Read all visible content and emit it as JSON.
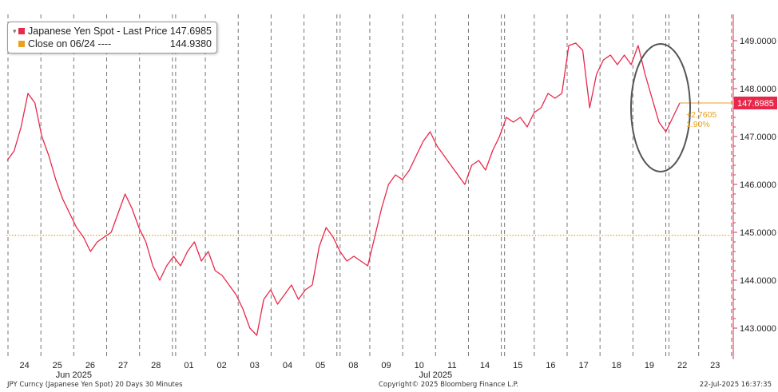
{
  "chart_data": {
    "type": "line",
    "series": [
      {
        "name": "Japanese Yen Spot - Last Price",
        "last_value": "147.6985",
        "color": "#e8284a",
        "values": [
          146.5,
          146.7,
          147.2,
          147.9,
          147.7,
          147.0,
          146.6,
          146.1,
          145.7,
          145.4,
          145.1,
          144.9,
          144.6,
          144.8,
          144.9,
          145.0,
          145.4,
          145.8,
          145.5,
          145.1,
          144.8,
          144.3,
          144.0,
          144.3,
          144.5,
          144.3,
          144.6,
          144.8,
          144.4,
          144.6,
          144.2,
          144.1,
          143.9,
          143.7,
          143.4,
          143.0,
          142.85,
          143.6,
          143.8,
          143.5,
          143.7,
          143.9,
          143.6,
          143.8,
          143.9,
          144.7,
          145.1,
          144.9,
          144.6,
          144.4,
          144.5,
          144.4,
          144.3,
          144.9,
          145.5,
          146.0,
          146.2,
          146.1,
          146.3,
          146.6,
          146.9,
          147.1,
          146.8,
          146.6,
          146.4,
          146.2,
          146.0,
          146.4,
          146.5,
          146.3,
          146.7,
          147.0,
          147.4,
          147.3,
          147.4,
          147.2,
          147.5,
          147.6,
          147.9,
          147.8,
          147.9,
          148.9,
          148.95,
          148.8,
          147.6,
          148.3,
          148.6,
          148.7,
          148.5,
          148.7,
          148.5,
          148.9,
          148.3,
          147.8,
          147.3,
          147.1,
          147.4,
          147.7
        ],
        "marker_value": "147.6985"
      },
      {
        "name": "Close on 06/24 ----",
        "last_value": "144.9380",
        "color": "#e8a020",
        "value": 144.938,
        "style": "dotted"
      }
    ],
    "xlabel": "",
    "ylabel": "",
    "ylim": [
      142.35,
      149.55
    ],
    "y_ticks": [
      "143.0000",
      "144.0000",
      "145.0000",
      "146.0000",
      "147.0000",
      "148.0000",
      "149.0000"
    ],
    "y_tick_values": [
      143,
      144,
      145,
      146,
      147,
      148,
      149
    ],
    "x_tick_labels": [
      "24",
      "25",
      "26",
      "27",
      "28",
      "01",
      "02",
      "03",
      "04",
      "05",
      "08",
      "09",
      "10",
      "11",
      "14",
      "15",
      "16",
      "17",
      "18",
      "19",
      "22",
      "23"
    ],
    "x_month_labels": [
      "Jun 2025",
      "Jul 2025"
    ],
    "annotation_change": "+2.7605",
    "annotation_pct": "1.90%",
    "annotation": "circle around the final two days",
    "grid": "vertical dashed day separators",
    "legend_position": "top-left"
  },
  "footer": {
    "left": "JPY Curncy (Japanese Yen Spot) 20 Days 30 Minutes",
    "center": "Copyright© 2025 Bloomberg Finance L.P.",
    "right": "22-Jul-2025 16:37:35"
  },
  "colors": {
    "price": "#e8284a",
    "reference": "#e8a020",
    "axis": "#e8284a",
    "circle": "#555555"
  }
}
